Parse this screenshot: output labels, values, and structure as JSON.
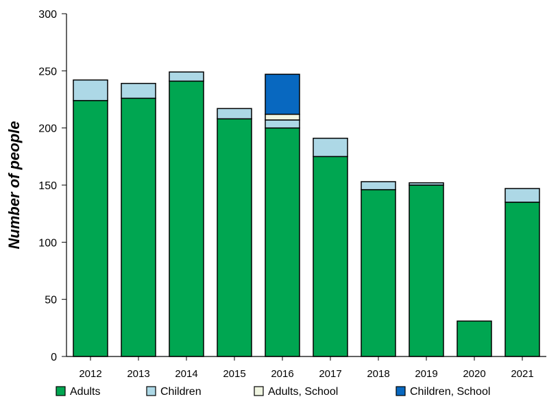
{
  "chart_data": {
    "type": "bar",
    "stacked": true,
    "title": "",
    "xlabel": "",
    "ylabel": "Number of people",
    "ylim": [
      0,
      300
    ],
    "yticks": [
      0,
      50,
      100,
      150,
      200,
      250,
      300
    ],
    "grid": false,
    "legend_position": "bottom",
    "categories": [
      "2012",
      "2013",
      "2014",
      "2015",
      "2016",
      "2017",
      "2018",
      "2019",
      "2020",
      "2021"
    ],
    "series": [
      {
        "name": "Adults",
        "color": "#00a651",
        "values": [
          224,
          226,
          241,
          208,
          200,
          175,
          146,
          150,
          31,
          135
        ]
      },
      {
        "name": "Children",
        "color": "#add8e6",
        "values": [
          18,
          13,
          8,
          9,
          7,
          16,
          7,
          2,
          0,
          12
        ]
      },
      {
        "name": "Adults, School",
        "color": "#f0f5e1",
        "values": [
          0,
          0,
          0,
          0,
          5,
          0,
          0,
          0,
          0,
          0
        ]
      },
      {
        "name": "Children, School",
        "color": "#0868c0",
        "values": [
          0,
          0,
          0,
          0,
          35,
          0,
          0,
          0,
          0,
          0
        ]
      }
    ]
  }
}
